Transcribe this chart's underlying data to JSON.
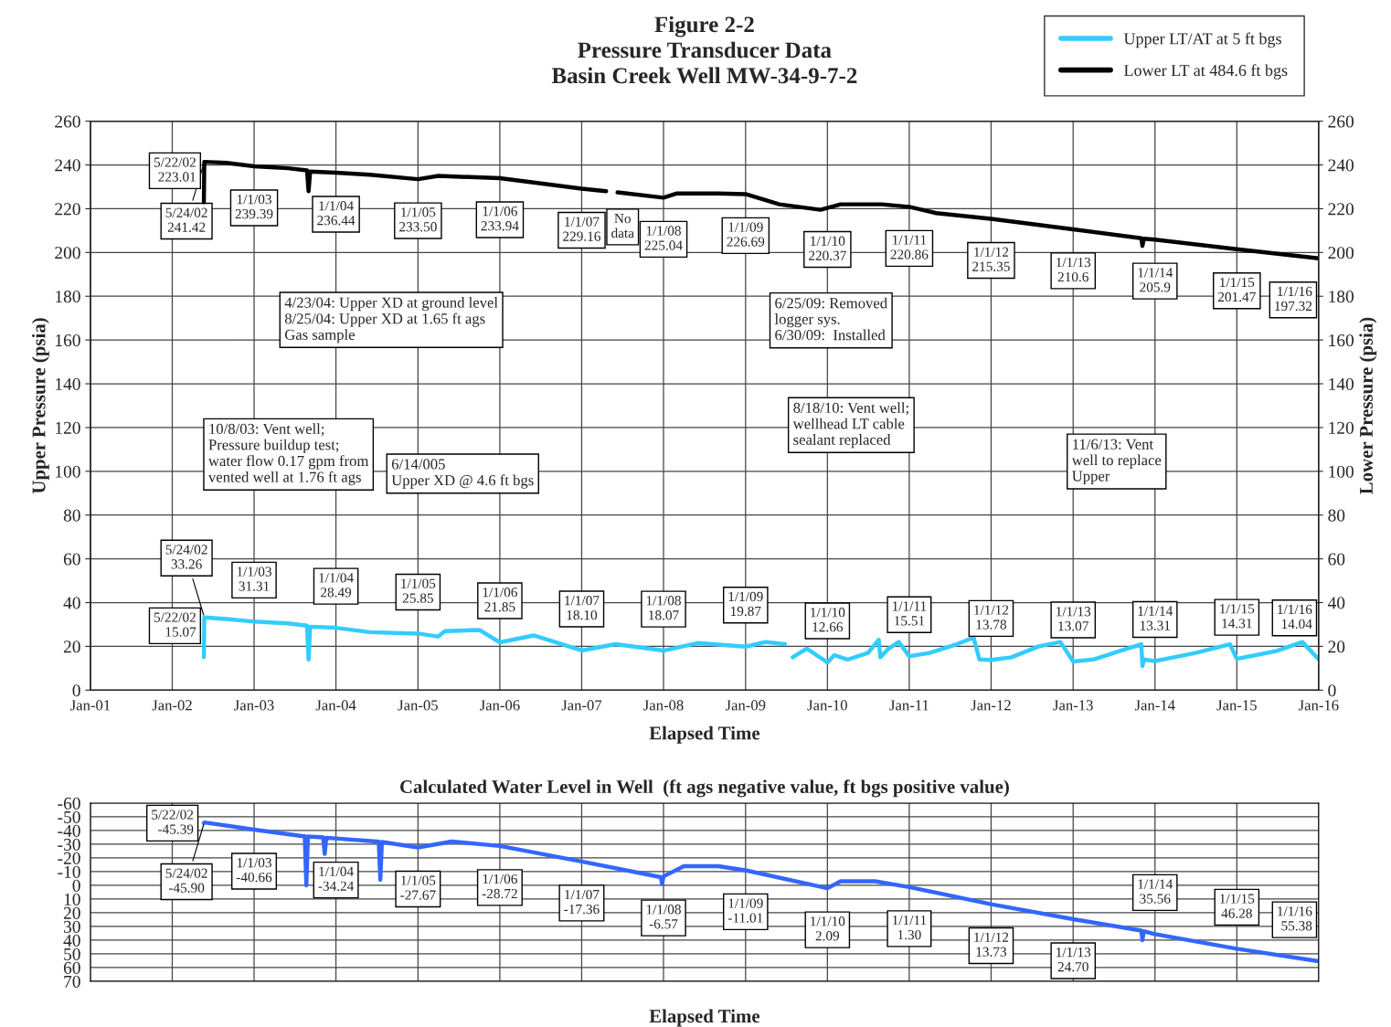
{
  "chart_data": [
    {
      "type": "line",
      "title": "Figure 2-2\nPressure Transducer Data\nBasin Creek Well MW-34-9-7-2",
      "xlabel": "Elapsed Time",
      "ylabel": "Upper Pressure (psia)",
      "y2label": "Lower Pressure (psia)",
      "xlim": [
        "2001-01-01",
        "2016-01-01"
      ],
      "xticks": [
        {
          "value": "2001-01-01",
          "label": "Jan-01"
        },
        {
          "value": "2002-01-01",
          "label": "Jan-02"
        },
        {
          "value": "2003-01-01",
          "label": "Jan-03"
        },
        {
          "value": "2004-01-01",
          "label": "Jan-04"
        },
        {
          "value": "2005-01-01",
          "label": "Jan-05"
        },
        {
          "value": "2006-01-01",
          "label": "Jan-06"
        },
        {
          "value": "2007-01-01",
          "label": "Jan-07"
        },
        {
          "value": "2008-01-01",
          "label": "Jan-08"
        },
        {
          "value": "2009-01-01",
          "label": "Jan-09"
        },
        {
          "value": "2010-01-01",
          "label": "Jan-10"
        },
        {
          "value": "2011-01-01",
          "label": "Jan-11"
        },
        {
          "value": "2012-01-01",
          "label": "Jan-12"
        },
        {
          "value": "2013-01-01",
          "label": "Jan-13"
        },
        {
          "value": "2014-01-01",
          "label": "Jan-14"
        },
        {
          "value": "2015-01-01",
          "label": "Jan-15"
        },
        {
          "value": "2016-01-01",
          "label": "Jan-16"
        }
      ],
      "ylim": [
        0,
        260
      ],
      "yticks": [
        0,
        20,
        40,
        60,
        80,
        100,
        120,
        140,
        160,
        180,
        200,
        220,
        240,
        260
      ],
      "y2lim": [
        0,
        260
      ],
      "y2ticks": [
        0,
        20,
        40,
        60,
        80,
        100,
        120,
        140,
        160,
        180,
        200,
        220,
        240,
        260
      ],
      "grid": true,
      "legend": "top right",
      "series": [
        {
          "name": "Upper LT/AT at 5 ft bgs",
          "color": "#33ccff",
          "x": [
            "2002-05-22",
            "2002-05-24",
            "2002-09-01",
            "2003-01-01",
            "2003-06-01",
            "2003-08-25",
            "2003-09-01",
            "2003-09-08",
            "2004-01-01",
            "2004-06-01",
            "2005-01-01",
            "2005-04-01",
            "2005-05-01",
            "2005-10-01",
            "2006-01-01",
            "2006-06-01",
            "2007-01-01",
            "2007-06-01",
            "2008-01-01",
            "2008-06-01",
            "2009-01-01",
            "2009-04-01",
            "2009-06-25",
            "2009-07-15",
            "2009-07-30",
            "2009-10-01",
            "2010-01-01",
            "2010-02-01",
            "2010-04-01",
            "2010-07-01",
            "2010-08-18",
            "2010-08-25",
            "2010-10-01",
            "2010-11-15",
            "2011-01-01",
            "2011-04-01",
            "2011-08-01",
            "2011-10-15",
            "2011-11-10",
            "2012-01-01",
            "2012-04-01",
            "2012-08-01",
            "2012-11-05",
            "2013-01-01",
            "2013-04-01",
            "2013-08-01",
            "2013-11-01",
            "2013-11-06",
            "2013-11-12",
            "2014-01-01",
            "2014-07-01",
            "2014-12-01",
            "2015-01-01",
            "2015-07-01",
            "2015-10-20",
            "2016-01-01"
          ],
          "values": [
            15.07,
            33.26,
            32.5,
            31.31,
            30.5,
            29.5,
            14,
            29,
            28.49,
            26.5,
            25.85,
            24.5,
            27,
            27.5,
            21.85,
            25,
            18.1,
            21,
            18.07,
            21.5,
            19.87,
            22,
            21,
            null,
            15,
            19,
            12.66,
            16,
            14,
            17,
            23,
            15,
            19,
            22,
            15.51,
            17,
            21,
            24,
            14,
            13.78,
            15,
            20,
            22,
            13.07,
            14,
            18,
            21,
            11,
            14,
            13.31,
            17,
            21,
            14.31,
            18,
            22,
            14.04
          ]
        },
        {
          "name": "Lower LT at 484.6 ft bgs",
          "color": "#000000",
          "axis": "y2",
          "x": [
            "2002-05-22",
            "2002-05-24",
            "2002-09-01",
            "2003-01-01",
            "2003-06-01",
            "2003-08-25",
            "2003-09-01",
            "2003-09-08",
            "2004-01-01",
            "2004-06-01",
            "2005-01-01",
            "2005-04-01",
            "2006-01-01",
            "2006-06-01",
            "2007-01-01",
            "2007-04-20",
            "2007-05-10",
            "2007-06-10",
            "2008-01-01",
            "2008-03-01",
            "2008-09-01",
            "2009-01-01",
            "2009-06-01",
            "2009-12-01",
            "2010-03-01",
            "2010-09-01",
            "2011-01-01",
            "2011-05-01",
            "2012-01-01",
            "2013-01-01",
            "2013-11-01",
            "2013-11-06",
            "2013-11-12",
            "2014-01-01",
            "2015-01-01",
            "2016-01-01"
          ],
          "values": [
            223.01,
            241.42,
            241,
            239.39,
            238.5,
            237.5,
            228,
            237,
            236.44,
            235.5,
            233.5,
            235,
            233.94,
            232,
            229.16,
            228,
            null,
            227.5,
            225.04,
            227,
            227,
            226.69,
            222,
            219.5,
            222,
            222,
            220.86,
            218,
            215.35,
            210.6,
            206.5,
            203,
            206.3,
            205.9,
            201.47,
            197.32
          ]
        }
      ],
      "annotations": [
        "No\ndata",
        "4/23/04: Upper XD at ground level\n8/25/04: Upper XD at 1.65 ft ags\nGas sample",
        "6/25/09: Removed\nlogger sys.\n6/30/09:  Installed",
        "8/18/10: Vent well;\nwellhead LT cable\nsealant replaced",
        "10/8/03: Vent well;\nPressure buildup test;\nwater flow 0.17 gpm from\nvented well at 1.76 ft ags",
        "11/6/13: Vent\nwell to replace\nUpper",
        "6/14/005\nUpper XD @ 4.6 ft bgs",
        {
          "text": "5/24/02\n241.42",
          "x": "2002-05-24",
          "y": 241.42
        },
        {
          "text": "5/22/02\n223.01",
          "x": "2002-05-22",
          "y": 223.01
        },
        {
          "text": "1/1/03\n239.39",
          "x": "2003-01-01",
          "y": 239.39
        },
        {
          "text": "1/1/04\n236.44",
          "x": "2004-01-01",
          "y": 236.44
        },
        {
          "text": "1/1/05\n233.50",
          "x": "2005-01-01",
          "y": 233.5
        },
        {
          "text": "1/1/06\n233.94",
          "x": "2006-01-01",
          "y": 233.94
        },
        {
          "text": "1/1/07\n229.16",
          "x": "2007-01-01",
          "y": 229.16
        },
        {
          "text": "1/1/08\n225.04",
          "x": "2008-01-01",
          "y": 225.04
        },
        {
          "text": "1/1/09\n226.69",
          "x": "2009-01-01",
          "y": 226.69
        },
        {
          "text": "1/1/10\n220.37",
          "x": "2010-01-01",
          "y": 220.37
        },
        {
          "text": "1/1/11\n220.86",
          "x": "2011-01-01",
          "y": 220.86
        },
        {
          "text": "1/1/12\n215.35",
          "x": "2012-01-01",
          "y": 215.35
        },
        {
          "text": "1/1/13\n210.6",
          "x": "2013-01-01",
          "y": 210.6
        },
        {
          "text": "1/1/14\n205.9",
          "x": "2014-01-01",
          "y": 205.9
        },
        {
          "text": "1/1/15\n201.47",
          "x": "2015-01-01",
          "y": 201.47
        },
        {
          "text": "1/1/16\n197.32",
          "x": "2016-01-01",
          "y": 197.32
        },
        {
          "text": "5/24/02\n33.26",
          "x": "2002-05-24",
          "y": 33.26
        },
        {
          "text": "5/22/02\n15.07",
          "x": "2002-05-22",
          "y": 15.07
        },
        {
          "text": "1/1/03\n31.31",
          "x": "2003-01-01",
          "y": 31.31
        },
        {
          "text": "1/1/04\n28.49",
          "x": "2004-01-01",
          "y": 28.49
        },
        {
          "text": "1/1/05\n25.85",
          "x": "2005-01-01",
          "y": 25.85
        },
        {
          "text": "1/1/06\n21.85",
          "x": "2006-01-01",
          "y": 21.85
        },
        {
          "text": "1/1/07\n18.10",
          "x": "2007-01-01",
          "y": 18.1
        },
        {
          "text": "1/1/08\n18.07",
          "x": "2008-01-01",
          "y": 18.07
        },
        {
          "text": "1/1/09\n19.87",
          "x": "2009-01-01",
          "y": 19.87
        },
        {
          "text": "1/1/10\n12.66",
          "x": "2010-01-01",
          "y": 12.66
        },
        {
          "text": "1/1/11\n15.51",
          "x": "2011-01-01",
          "y": 15.51
        },
        {
          "text": "1/1/12\n13.78",
          "x": "2012-01-01",
          "y": 13.78
        },
        {
          "text": "1/1/13\n13.07",
          "x": "2013-01-01",
          "y": 13.07
        },
        {
          "text": "1/1/14\n13.31",
          "x": "2014-01-01",
          "y": 13.31
        },
        {
          "text": "1/1/15\n14.31",
          "x": "2015-01-01",
          "y": 14.31
        },
        {
          "text": "1/1/16\n14.04",
          "x": "2016-01-01",
          "y": 14.04
        }
      ]
    },
    {
      "type": "line",
      "title": "Calculated Water Level in Well  (ft ags negative value, ft bgs positive value)",
      "xlabel": "Elapsed Time",
      "xlim": [
        "2001-01-01",
        "2016-01-01"
      ],
      "xticks": [
        {
          "value": "2001-01-01",
          "label": null
        },
        {
          "value": "2002-01-01",
          "label": null
        },
        {
          "value": "2003-01-01",
          "label": null
        },
        {
          "value": "2004-01-01",
          "label": null
        },
        {
          "value": "2005-01-01",
          "label": null
        },
        {
          "value": "2006-01-01",
          "label": null
        },
        {
          "value": "2007-01-01",
          "label": null
        },
        {
          "value": "2008-01-01",
          "label": null
        },
        {
          "value": "2009-01-01",
          "label": null
        },
        {
          "value": "2010-01-01",
          "label": null
        },
        {
          "value": "2011-01-01",
          "label": null
        },
        {
          "value": "2012-01-01",
          "label": null
        },
        {
          "value": "2013-01-01",
          "label": null
        },
        {
          "value": "2014-01-01",
          "label": null
        },
        {
          "value": "2015-01-01",
          "label": null
        },
        {
          "value": "2016-01-01",
          "label": null
        }
      ],
      "ylim": [
        70,
        -60
      ],
      "yticks": [
        -60,
        -50,
        -40,
        -30,
        -20,
        -10,
        0,
        10,
        20,
        30,
        40,
        50,
        60,
        70
      ],
      "grid": true,
      "tick_labels": "y",
      "series": [
        {
          "color": "#3366ff",
          "x": [
            "2002-05-22",
            "2002-05-24",
            "2003-01-01",
            "2003-08-01",
            "2003-08-15",
            "2003-08-22",
            "2003-08-29",
            "2003-11-05",
            "2003-11-12",
            "2003-11-19",
            "2004-01-01",
            "2004-07-01",
            "2004-07-10",
            "2004-07-17",
            "2004-07-24",
            "2005-01-01",
            "2005-06-01",
            "2006-01-01",
            "2007-01-01",
            "2007-12-20",
            "2007-12-26",
            "2008-01-01",
            "2008-04-01",
            "2008-09-01",
            "2009-01-01",
            "2010-01-01",
            "2010-03-01",
            "2010-08-01",
            "2011-01-01",
            "2012-01-01",
            "2013-01-01",
            "2013-11-01",
            "2013-11-06",
            "2013-11-12",
            "2014-01-01",
            "2015-01-01",
            "2016-01-01"
          ],
          "values": [
            -45.39,
            -45.9,
            -40.66,
            -36,
            -35.8,
            0,
            -35.6,
            -35,
            -23,
            -34.6,
            -34.24,
            -32,
            -31.8,
            -4,
            -31.6,
            -27.67,
            -32,
            -28.72,
            -17.36,
            -6,
            -1,
            -6.57,
            -14,
            -14,
            -11.01,
            2.09,
            -3,
            -3,
            1.3,
            13.73,
            24.7,
            33,
            40,
            33.5,
            35.56,
            46.28,
            55.38
          ]
        }
      ],
      "annotations": [
        {
          "text": "5/24/02\n-45.90",
          "x": "2002-05-24",
          "y": -45.9
        },
        {
          "text": "5/22/02\n-45.39",
          "x": "2002-05-22",
          "y": -45.39
        },
        {
          "text": "1/1/03\n-40.66",
          "x": "2003-01-01",
          "y": -40.66
        },
        {
          "text": "1/1/04\n-34.24",
          "x": "2004-01-01",
          "y": -34.24
        },
        {
          "text": "1/1/05\n-27.67",
          "x": "2005-01-01",
          "y": -27.67
        },
        {
          "text": "1/1/06\n-28.72",
          "x": "2006-01-01",
          "y": -28.72
        },
        {
          "text": "1/1/07\n-17.36",
          "x": "2007-01-01",
          "y": -17.36
        },
        {
          "text": "1/1/08\n-6.57",
          "x": "2008-01-01",
          "y": -6.57
        },
        {
          "text": "1/1/09\n-11.01",
          "x": "2009-01-01",
          "y": -11.01
        },
        {
          "text": "1/1/10\n2.09",
          "x": "2010-01-01",
          "y": 2.09
        },
        {
          "text": "1/1/11\n1.30",
          "x": "2011-01-01",
          "y": 1.3
        },
        {
          "text": "1/1/12\n13.73",
          "x": "2012-01-01",
          "y": 13.73
        },
        {
          "text": "1/1/13\n24.70",
          "x": "2013-01-01",
          "y": 24.7
        },
        {
          "text": "1/1/14\n35.56",
          "x": "2014-01-01",
          "y": 35.56
        },
        {
          "text": "1/1/15\n46.28",
          "x": "2015-01-01",
          "y": 46.28
        },
        {
          "text": "1/1/16\n55.38",
          "x": "2016-01-01",
          "y": 55.38
        }
      ]
    }
  ]
}
